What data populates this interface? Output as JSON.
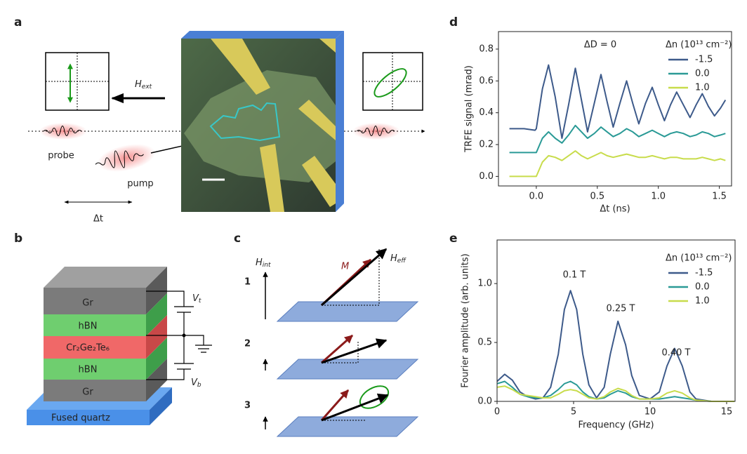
{
  "panel_labels": [
    "a",
    "b",
    "c",
    "d",
    "e"
  ],
  "panel_a": {
    "field_symbol": "H",
    "field_sub": "ext",
    "probe": "probe",
    "pump": "pump",
    "delay": "Δt"
  },
  "panel_b": {
    "layers": [
      "Gr",
      "hBN",
      "Cr₂Ge₂Te₆",
      "hBN",
      "Gr"
    ],
    "substrate": "Fused quartz",
    "top_gate": {
      "symbol": "V",
      "sub": "t"
    },
    "bottom_gate": {
      "symbol": "V",
      "sub": "b"
    }
  },
  "panel_c": {
    "steps": [
      "1",
      "2",
      "3"
    ],
    "internal_field": {
      "symbol": "H",
      "sub": "int"
    },
    "magnetization": "M",
    "effective_field": {
      "symbol": "H",
      "sub": "eff"
    }
  },
  "chart_data": [
    {
      "type": "line",
      "annotation": "ΔD = 0",
      "legend_title": "Δn (10¹³ cm⁻²)",
      "legend": "upper right",
      "xlabel": "Δt (ns)",
      "ylabel": "TRFE signal (mrad)",
      "xlim": [
        -0.31,
        1.6
      ],
      "ylim": [
        -0.06,
        0.91
      ],
      "xticks": [
        {
          "value": 0,
          "label": "0.0"
        },
        {
          "value": 0.5,
          "label": "0.5"
        },
        {
          "value": 1,
          "label": "1.0"
        },
        {
          "value": 1.5,
          "label": "1.5"
        }
      ],
      "yticks": [
        {
          "value": 0,
          "label": "0.0"
        },
        {
          "value": 0.2,
          "label": "0.2"
        },
        {
          "value": 0.4,
          "label": "0.4"
        },
        {
          "value": 0.6,
          "label": "0.6"
        },
        {
          "value": 0.8,
          "label": "0.8"
        }
      ],
      "x": [
        -0.22,
        -0.1,
        -0.01,
        0.0,
        0.05,
        0.1,
        0.155,
        0.21,
        0.265,
        0.32,
        0.37,
        0.42,
        0.475,
        0.53,
        0.58,
        0.63,
        0.685,
        0.74,
        0.79,
        0.84,
        0.895,
        0.95,
        1.0,
        1.05,
        1.1,
        1.15,
        1.205,
        1.26,
        1.31,
        1.36,
        1.41,
        1.46,
        1.51,
        1.55
      ],
      "series": [
        {
          "name": "-1.5",
          "color": "#3d5a8a",
          "values": [
            0.3,
            0.3,
            0.29,
            0.3,
            0.55,
            0.7,
            0.5,
            0.24,
            0.45,
            0.68,
            0.48,
            0.28,
            0.46,
            0.64,
            0.47,
            0.31,
            0.46,
            0.6,
            0.46,
            0.33,
            0.46,
            0.56,
            0.45,
            0.35,
            0.45,
            0.53,
            0.45,
            0.37,
            0.45,
            0.52,
            0.44,
            0.38,
            0.43,
            0.48
          ]
        },
        {
          "name": "0.0",
          "color": "#2a9a96",
          "values": [
            0.15,
            0.15,
            0.15,
            0.15,
            0.24,
            0.28,
            0.24,
            0.21,
            0.26,
            0.32,
            0.28,
            0.24,
            0.27,
            0.31,
            0.28,
            0.25,
            0.27,
            0.3,
            0.28,
            0.25,
            0.27,
            0.29,
            0.27,
            0.25,
            0.27,
            0.28,
            0.27,
            0.25,
            0.26,
            0.28,
            0.27,
            0.25,
            0.26,
            0.27
          ]
        },
        {
          "name": "1.0",
          "color": "#c8dc4b",
          "values": [
            0.0,
            0.0,
            0.0,
            0.0,
            0.09,
            0.13,
            0.12,
            0.1,
            0.13,
            0.16,
            0.13,
            0.11,
            0.13,
            0.15,
            0.13,
            0.12,
            0.13,
            0.14,
            0.13,
            0.12,
            0.12,
            0.13,
            0.12,
            0.11,
            0.12,
            0.12,
            0.11,
            0.11,
            0.11,
            0.12,
            0.11,
            0.1,
            0.11,
            0.1
          ]
        }
      ]
    },
    {
      "type": "line",
      "annotations": [
        "0.1 T",
        "0.25 T",
        "0.40 T"
      ],
      "legend_title": "Δn (10¹³ cm⁻²)",
      "legend": "upper right",
      "xlabel": "Frequency (GHz)",
      "ylabel": "Fourier amplitude (arb. units)",
      "xlim": [
        0,
        15.55
      ],
      "ylim": [
        0,
        1.37
      ],
      "xticks": [
        0,
        5,
        10,
        15
      ],
      "yticks": [
        {
          "value": 0,
          "label": "0.0"
        },
        {
          "value": 0.5,
          "label": "0.5"
        },
        {
          "value": 1,
          "label": "1.0"
        }
      ],
      "x": [
        0,
        0.5,
        1,
        1.5,
        2,
        2.5,
        3,
        3.5,
        4,
        4.4,
        4.8,
        5.2,
        5.6,
        6,
        6.5,
        7,
        7.4,
        7.9,
        8.4,
        8.8,
        9.3,
        10,
        10.6,
        11.1,
        11.6,
        12.1,
        12.6,
        13,
        14,
        15.5
      ],
      "series": [
        {
          "name": "-1.5",
          "color": "#3d5a8a",
          "values": [
            0.17,
            0.23,
            0.18,
            0.08,
            0.04,
            0.02,
            0.03,
            0.12,
            0.4,
            0.78,
            0.94,
            0.78,
            0.4,
            0.14,
            0.03,
            0.12,
            0.4,
            0.68,
            0.48,
            0.22,
            0.05,
            0.02,
            0.08,
            0.3,
            0.45,
            0.3,
            0.08,
            0.02,
            0,
            0
          ]
        },
        {
          "name": "0.0",
          "color": "#2a9a96",
          "values": [
            0.15,
            0.17,
            0.12,
            0.06,
            0.04,
            0.03,
            0.03,
            0.05,
            0.1,
            0.15,
            0.17,
            0.14,
            0.08,
            0.04,
            0.02,
            0.03,
            0.06,
            0.09,
            0.07,
            0.04,
            0.02,
            0.02,
            0.02,
            0.03,
            0.04,
            0.03,
            0.02,
            0.01,
            0,
            0
          ]
        },
        {
          "name": "1.0",
          "color": "#c8dc4b",
          "values": [
            0.12,
            0.13,
            0.1,
            0.06,
            0.05,
            0.04,
            0.03,
            0.03,
            0.06,
            0.09,
            0.1,
            0.09,
            0.06,
            0.03,
            0.02,
            0.04,
            0.08,
            0.11,
            0.09,
            0.05,
            0.02,
            0.02,
            0.03,
            0.07,
            0.09,
            0.07,
            0.03,
            0.01,
            0,
            0
          ]
        }
      ]
    }
  ]
}
